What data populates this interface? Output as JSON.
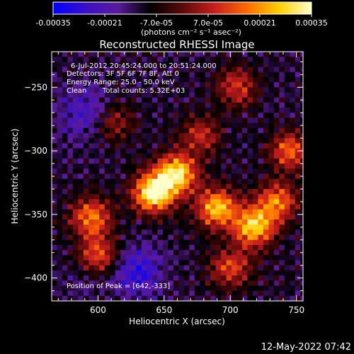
{
  "chart_data": {
    "type": "heatmap",
    "title": "Reconstructed RHESSI Image",
    "xlabel": "Heliocentric X (arcsec)",
    "ylabel": "Heliocentric Y (arcsec)",
    "xlim": [
      565,
      755
    ],
    "ylim": [
      -418,
      -222
    ],
    "x_ticks": [
      600,
      650,
      700,
      750
    ],
    "y_ticks": [
      -250,
      -300,
      -350,
      -400
    ],
    "colorbar": {
      "range": [
        -0.00035,
        0.00035
      ],
      "tick_values": [
        -0.00035,
        -0.00021,
        -7e-05,
        7e-05,
        0.00021,
        0.00035
      ],
      "tick_labels": [
        "-0.00035",
        "-0.00021",
        "-7.0e-05",
        "7.0e-05",
        "0.00021",
        "0.00035"
      ],
      "unit_label": "(photons cm⁻² s⁻¹ asec⁻²)"
    },
    "colorscale": [
      "#0000ff",
      "#3a10c8",
      "#5a1a9a",
      "#000000",
      "#5a0a0a",
      "#c81e1e",
      "#ff6a00",
      "#ffd000",
      "#ffffcc"
    ],
    "annotations": {
      "time_range": "6-Jul-2012 20:45:24.000 to 20:51:24.000",
      "detectors": "Detectors: 3F 5F 6F 7F 8F, Att 0",
      "energy": "Energy Range: 25.0 - 50.0 keV",
      "method": "Clean",
      "counts": "Total counts: 5.32E+03",
      "peak": "Position of Peak = [642,-333]"
    },
    "peak_position": [
      642,
      -333
    ],
    "bright_sources": [
      {
        "x": 642,
        "y": -333,
        "value": 0.00035
      },
      {
        "x": 660,
        "y": -318,
        "value": 0.0003
      },
      {
        "x": 690,
        "y": -345,
        "value": 0.00026
      },
      {
        "x": 718,
        "y": -360,
        "value": 0.00027
      },
      {
        "x": 595,
        "y": -352,
        "value": 0.00018
      },
      {
        "x": 600,
        "y": -382,
        "value": 0.00014
      },
      {
        "x": 735,
        "y": -340,
        "value": 0.00018
      },
      {
        "x": 745,
        "y": -300,
        "value": 0.00015
      },
      {
        "x": 705,
        "y": -250,
        "value": 0.0001
      },
      {
        "x": 678,
        "y": -288,
        "value": 8e-05
      },
      {
        "x": 700,
        "y": -392,
        "value": 0.00012
      },
      {
        "x": 612,
        "y": -278,
        "value": 5e-05
      }
    ],
    "dark_regions": [
      {
        "x": 590,
        "y": -270,
        "value": -0.00025
      },
      {
        "x": 630,
        "y": -395,
        "value": -0.00028
      },
      {
        "x": 588,
        "y": -400,
        "value": -0.00015
      },
      {
        "x": 735,
        "y": -265,
        "value": -0.00012
      },
      {
        "x": 735,
        "y": -405,
        "value": -0.0001
      }
    ]
  },
  "footer": {
    "timestamp": "12-May-2022 07:42"
  }
}
